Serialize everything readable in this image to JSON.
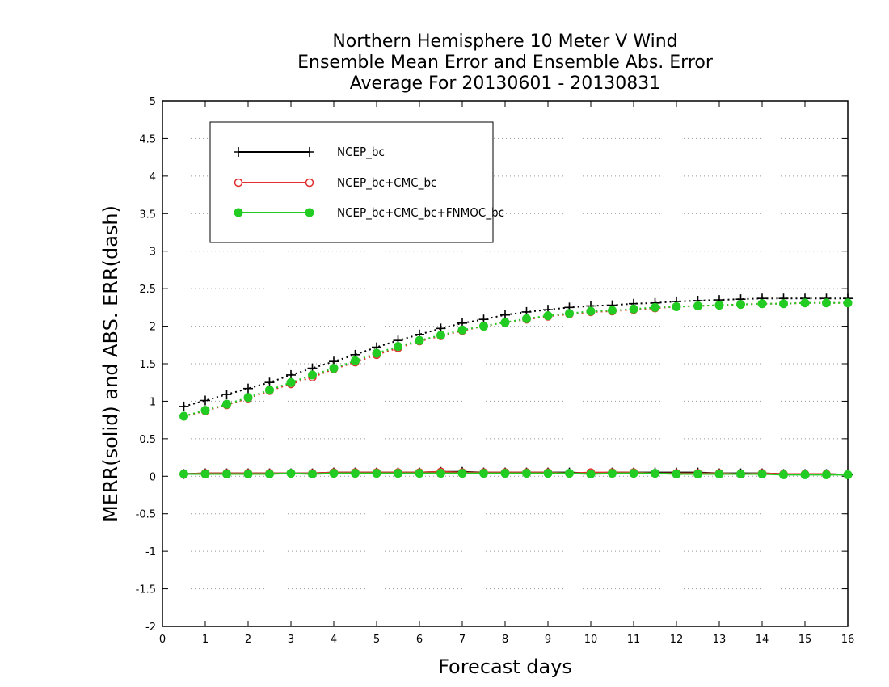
{
  "chart_data": {
    "type": "line",
    "title_lines": [
      "Northern Hemisphere 10 Meter V Wind",
      "Ensemble Mean Error and Ensemble Abs. Error",
      "Average For 20130601 - 20130831"
    ],
    "xlabel": "Forecast days",
    "ylabel": "MERR(solid) and ABS. ERR(dash)",
    "xlim": [
      0,
      16
    ],
    "ylim": [
      -2,
      5
    ],
    "x_ticks": [
      "0",
      "1",
      "2",
      "3",
      "4",
      "5",
      "6",
      "7",
      "8",
      "9",
      "10",
      "11",
      "12",
      "13",
      "14",
      "15",
      "16"
    ],
    "y_ticks": [
      "-2",
      "-1.5",
      "-1",
      "-0.5",
      "0",
      "0.5",
      "1",
      "1.5",
      "2",
      "2.5",
      "3",
      "3.5",
      "4",
      "4.5",
      "5"
    ],
    "grid": "horizontal-dotted",
    "legend_position": "top-left",
    "x": [
      0.5,
      1,
      1.5,
      2,
      2.5,
      3,
      3.5,
      4,
      4.5,
      5,
      5.5,
      6,
      6.5,
      7,
      7.5,
      8,
      8.5,
      9,
      9.5,
      10,
      10.5,
      11,
      11.5,
      12,
      12.5,
      13,
      13.5,
      14,
      14.5,
      15,
      15.5,
      16
    ],
    "series": [
      {
        "name": "NCEP_bc",
        "color": "#000000",
        "marker": "plus",
        "mean_error": [
          0.03,
          0.04,
          0.04,
          0.04,
          0.04,
          0.04,
          0.04,
          0.05,
          0.05,
          0.05,
          0.05,
          0.05,
          0.06,
          0.06,
          0.05,
          0.05,
          0.05,
          0.05,
          0.05,
          0.04,
          0.05,
          0.05,
          0.05,
          0.05,
          0.05,
          0.04,
          0.04,
          0.04,
          0.03,
          0.03,
          0.03,
          0.02
        ],
        "abs_error": [
          0.93,
          1.01,
          1.09,
          1.17,
          1.25,
          1.35,
          1.44,
          1.53,
          1.62,
          1.72,
          1.81,
          1.89,
          1.97,
          2.04,
          2.09,
          2.15,
          2.19,
          2.22,
          2.25,
          2.27,
          2.28,
          2.3,
          2.31,
          2.33,
          2.34,
          2.35,
          2.36,
          2.37,
          2.37,
          2.37,
          2.37,
          2.37
        ]
      },
      {
        "name": "NCEP_bc+CMC_bc",
        "color": "#e03030",
        "marker": "open-circle",
        "mean_error": [
          0.03,
          0.04,
          0.04,
          0.04,
          0.04,
          0.04,
          0.04,
          0.05,
          0.05,
          0.05,
          0.05,
          0.05,
          0.06,
          0.05,
          0.05,
          0.05,
          0.05,
          0.05,
          0.04,
          0.05,
          0.05,
          0.05,
          0.04,
          0.04,
          0.04,
          0.04,
          0.03,
          0.04,
          0.03,
          0.03,
          0.03,
          0.02
        ],
        "abs_error": [
          0.8,
          0.87,
          0.95,
          1.04,
          1.14,
          1.23,
          1.32,
          1.43,
          1.52,
          1.62,
          1.71,
          1.8,
          1.87,
          1.94,
          2.0,
          2.05,
          2.09,
          2.13,
          2.16,
          2.19,
          2.2,
          2.22,
          2.24,
          2.26,
          2.27,
          2.28,
          2.29,
          2.3,
          2.3,
          2.31,
          2.31,
          2.31
        ]
      },
      {
        "name": "NCEP_bc+CMC_bc+FNMOC_bc",
        "color": "#22cc22",
        "marker": "filled-circle",
        "mean_error": [
          0.03,
          0.03,
          0.03,
          0.03,
          0.03,
          0.04,
          0.03,
          0.04,
          0.04,
          0.04,
          0.04,
          0.04,
          0.04,
          0.04,
          0.04,
          0.04,
          0.04,
          0.04,
          0.04,
          0.03,
          0.04,
          0.04,
          0.04,
          0.03,
          0.03,
          0.03,
          0.03,
          0.03,
          0.02,
          0.02,
          0.02,
          0.02
        ],
        "abs_error": [
          0.8,
          0.88,
          0.96,
          1.05,
          1.15,
          1.25,
          1.35,
          1.44,
          1.54,
          1.64,
          1.73,
          1.81,
          1.88,
          1.95,
          2.0,
          2.05,
          2.1,
          2.14,
          2.17,
          2.2,
          2.21,
          2.23,
          2.25,
          2.26,
          2.27,
          2.28,
          2.29,
          2.3,
          2.3,
          2.31,
          2.31,
          2.31
        ]
      }
    ]
  }
}
